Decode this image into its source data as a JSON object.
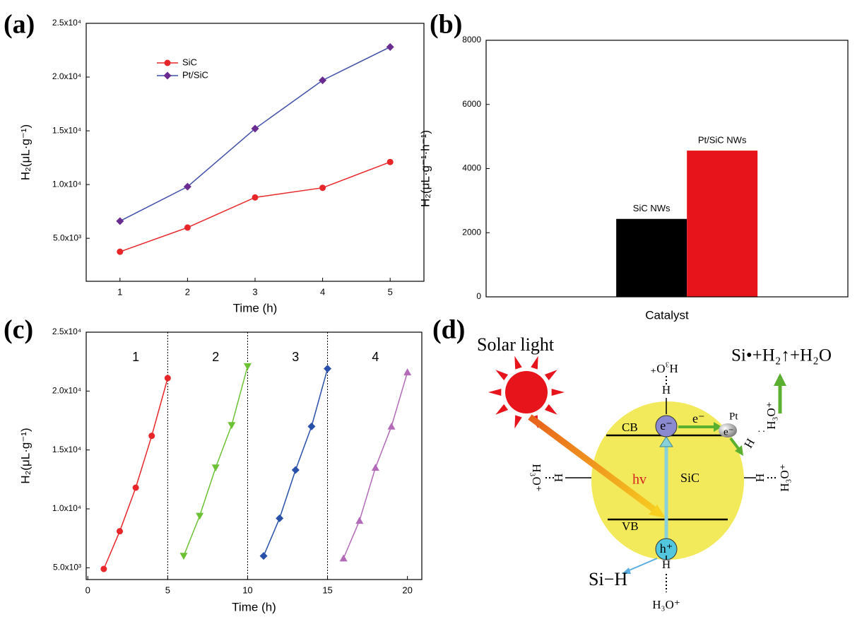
{
  "chart_data": [
    {
      "type": "line",
      "panel_label": "(a)",
      "xlabel": "Time (h)",
      "ylabel": "H₂(μL·g⁻¹)",
      "xlim": [
        0.5,
        5.5
      ],
      "xticks": [
        1,
        2,
        3,
        4,
        5
      ],
      "ylim": [
        1000,
        25000
      ],
      "yticks": [
        {
          "value": 5000,
          "label": "5.0x10³"
        },
        {
          "value": 10000,
          "label": "1.0x10⁴"
        },
        {
          "value": 15000,
          "label": "1.5x10⁴"
        },
        {
          "value": 20000,
          "label": "2.0x10⁴"
        },
        {
          "value": 25000,
          "label": "2.5x10⁴"
        }
      ],
      "legend": "upper left",
      "series": [
        {
          "name": "SiC",
          "color": "#e8262a",
          "marker_color": "#e8262a",
          "marker": "circle",
          "x": [
            1,
            2,
            3,
            4,
            5
          ],
          "values": [
            3750,
            6000,
            8800,
            9700,
            12100
          ]
        },
        {
          "name": "Pt/SiC",
          "color": "#3f4fa8",
          "marker_color": "#6b2c91",
          "marker": "diamond",
          "x": [
            1,
            2,
            3,
            4,
            5
          ],
          "values": [
            6600,
            9800,
            15200,
            19700,
            22800
          ]
        }
      ]
    },
    {
      "type": "bar",
      "panel_label": "(b)",
      "xlabel": "Catalyst",
      "ylabel": "H₂(μL·g⁻¹·h⁻¹)",
      "categories": [
        "SiC NWs",
        "Pt/SiC NWs"
      ],
      "values": [
        2430,
        4560
      ],
      "colors": [
        "#000000",
        "#e8141c"
      ],
      "ylim": [
        0,
        8000
      ],
      "yticks": [
        0,
        2000,
        4000,
        6000,
        8000
      ]
    },
    {
      "type": "line",
      "panel_label": "(c)",
      "xlabel": "Time (h)",
      "ylabel": "H₂(μL·g⁻¹)",
      "xlim": [
        -0.1,
        20.9
      ],
      "xticks": [
        0,
        5,
        10,
        15,
        20
      ],
      "ylim": [
        4000,
        25000
      ],
      "yticks": [
        {
          "value": 5000,
          "label": "5.0x10³"
        },
        {
          "value": 10000,
          "label": "1.0x10⁴"
        },
        {
          "value": 15000,
          "label": "1.5x10⁴"
        },
        {
          "value": 20000,
          "label": "2.0x10⁴"
        },
        {
          "value": 25000,
          "label": "2.5x10⁴"
        }
      ],
      "vlines": [
        5,
        10,
        15
      ],
      "annotations": [
        "1",
        "2",
        "3",
        "4"
      ],
      "series": [
        {
          "color": "#e8262a",
          "marker_color": "#e8262a",
          "marker": "circle",
          "x": [
            1,
            2,
            3,
            4,
            5
          ],
          "values": [
            4900,
            8100,
            11800,
            16200,
            21100
          ]
        },
        {
          "color": "#6cc234",
          "marker_color": "#6cc234",
          "marker": "triangle-down",
          "x": [
            6,
            7,
            8,
            9,
            10
          ],
          "values": [
            6000,
            9400,
            13500,
            17100,
            22100
          ]
        },
        {
          "color": "#2850a8",
          "marker_color": "#2850a8",
          "marker": "diamond",
          "x": [
            11,
            12,
            13,
            14,
            15
          ],
          "values": [
            6000,
            9200,
            13300,
            17000,
            21900
          ]
        },
        {
          "color": "#b36ab8",
          "marker_color": "#b36ab8",
          "marker": "triangle-up",
          "x": [
            16,
            17,
            18,
            19,
            20
          ],
          "values": [
            5800,
            9000,
            13500,
            17000,
            21600
          ]
        }
      ]
    }
  ],
  "diagram": {
    "panel_label": "(d)",
    "solar_light": "Solar light",
    "reaction": "Si•+H₂↑+H₂O",
    "cb": "CB",
    "vb": "VB",
    "electron": "e⁻",
    "hole": "h⁺",
    "hv": "hv",
    "sic": "SiC",
    "pt": "Pt",
    "h": "H",
    "h3o": "H₃O⁺",
    "si_h": "Si−H"
  }
}
